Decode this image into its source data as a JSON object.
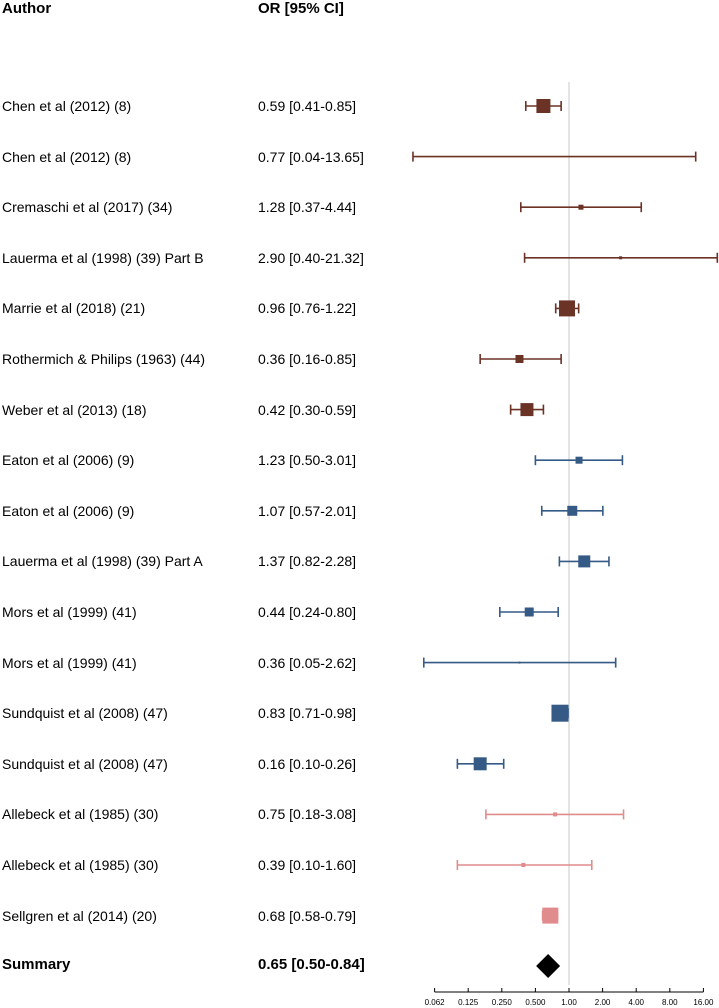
{
  "headers": {
    "author": "Author",
    "or": "OR [95% CI]"
  },
  "chart_data": {
    "type": "forest",
    "scale": "log2",
    "xlim": [
      0.0625,
      16
    ],
    "reference_line": 1,
    "xticks": [
      0.0625,
      0.125,
      0.25,
      0.5,
      1,
      2,
      4,
      8,
      16
    ],
    "xtick_labels": [
      "0.062",
      "0.125",
      "0.250",
      "0.500",
      "1.00",
      "2.00",
      "4.00",
      "8.00",
      "16.00"
    ],
    "group_colors": {
      "group1": "#6b3226",
      "group2": "#355a86",
      "group3": "#e08c8c",
      "summary": "#000000"
    },
    "studies": [
      {
        "author": "Chen et al (2012) (8)",
        "or_text": "0.59 [0.41-0.85]",
        "or": 0.59,
        "lo": 0.41,
        "hi": 0.85,
        "group": "group1",
        "weight": 14
      },
      {
        "author": "Chen et al (2012) (8)",
        "or_text": "0.77 [0.04-13.65]",
        "or": 0.77,
        "lo": 0.04,
        "hi": 13.65,
        "group": "group1",
        "weight": 1
      },
      {
        "author": "Cremaschi et al (2017) (34)",
        "or_text": "1.28 [0.37-4.44]",
        "or": 1.28,
        "lo": 0.37,
        "hi": 4.44,
        "group": "group1",
        "weight": 5
      },
      {
        "author": "Lauerma et al (1998) (39) Part B",
        "or_text": "2.90 [0.40-21.32]",
        "or": 2.9,
        "lo": 0.4,
        "hi": 21.32,
        "group": "group1",
        "weight": 3
      },
      {
        "author": "Marrie et al (2018) (21)",
        "or_text": "0.96 [0.76-1.22]",
        "or": 0.96,
        "lo": 0.76,
        "hi": 1.22,
        "group": "group1",
        "weight": 16
      },
      {
        "author": "Rothermich & Philips (1963) (44)",
        "or_text": "0.36 [0.16-0.85]",
        "or": 0.36,
        "lo": 0.16,
        "hi": 0.85,
        "group": "group1",
        "weight": 8
      },
      {
        "author": "Weber et al (2013) (18)",
        "or_text": "0.42 [0.30-0.59]",
        "or": 0.42,
        "lo": 0.3,
        "hi": 0.59,
        "group": "group1",
        "weight": 13
      },
      {
        "author": "Eaton et al (2006) (9)",
        "or_text": "1.23 [0.50-3.01]",
        "or": 1.23,
        "lo": 0.5,
        "hi": 3.01,
        "group": "group2",
        "weight": 7
      },
      {
        "author": "Eaton et al (2006) (9)",
        "or_text": "1.07 [0.57-2.01]",
        "or": 1.07,
        "lo": 0.57,
        "hi": 2.01,
        "group": "group2",
        "weight": 10
      },
      {
        "author": "Lauerma et al (1998) (39) Part A",
        "or_text": "1.37 [0.82-2.28]",
        "or": 1.37,
        "lo": 0.82,
        "hi": 2.28,
        "group": "group2",
        "weight": 12
      },
      {
        "author": "Mors et al (1999) (41)",
        "or_text": "0.44 [0.24-0.80]",
        "or": 0.44,
        "lo": 0.24,
        "hi": 0.8,
        "group": "group2",
        "weight": 9
      },
      {
        "author": "Mors et al (1999) (41)",
        "or_text": "0.36 [0.05-2.62]",
        "or": 0.36,
        "lo": 0.05,
        "hi": 2.62,
        "group": "group2",
        "weight": 2
      },
      {
        "author": "Sundquist et al (2008) (47)",
        "or_text": "0.83 [0.71-0.98]",
        "or": 0.83,
        "lo": 0.71,
        "hi": 0.98,
        "group": "group2",
        "weight": 17
      },
      {
        "author": "Sundquist et al (2008) (47)",
        "or_text": "0.16 [0.10-0.26]",
        "or": 0.16,
        "lo": 0.1,
        "hi": 0.26,
        "group": "group2",
        "weight": 13
      },
      {
        "author": "Allebeck et al (1985) (30)",
        "or_text": "0.75 [0.18-3.08]",
        "or": 0.75,
        "lo": 0.18,
        "hi": 3.08,
        "group": "group3",
        "weight": 4
      },
      {
        "author": "Allebeck et al (1985) (30)",
        "or_text": "0.39 [0.10-1.60]",
        "or": 0.39,
        "lo": 0.1,
        "hi": 1.6,
        "group": "group3",
        "weight": 4
      },
      {
        "author": "Sellgren et al (2014) (20)",
        "or_text": "0.68 [0.58-0.79]",
        "or": 0.68,
        "lo": 0.58,
        "hi": 0.79,
        "group": "group3",
        "weight": 16
      }
    ],
    "summary": {
      "author": "Summary",
      "or_text": "0.65 [0.50-0.84]",
      "or": 0.65,
      "lo": 0.5,
      "hi": 0.84
    }
  }
}
